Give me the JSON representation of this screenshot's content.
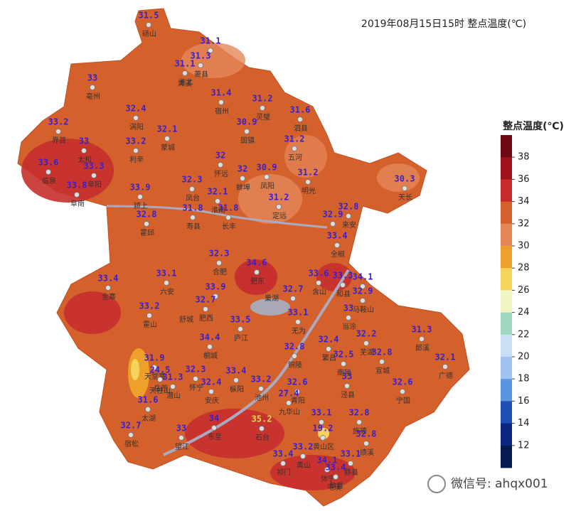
{
  "title": "2019年08月15日15时  整点温度(℃)",
  "legend": {
    "title": "整点温度(℃)",
    "ticks": [
      38,
      36,
      34,
      32,
      30,
      28,
      26,
      24,
      22,
      20,
      18,
      16,
      14,
      12
    ]
  },
  "stations": [
    {
      "value": 31.5,
      "name": "砀山"
    },
    {
      "value": 31.1
    },
    {
      "value": 31.3,
      "name": "萧县"
    },
    {
      "value": 31.1,
      "name": "淮北"
    },
    {
      "value": 33,
      "name": "亳州"
    },
    {
      "value": 31.4,
      "name": "宿州"
    },
    {
      "value": 31.2,
      "name": "灵璧"
    },
    {
      "value": 31.6,
      "name": "泗县"
    },
    {
      "value": 32.4,
      "name": "涡阳"
    },
    {
      "value": 32.1,
      "name": "蒙城"
    },
    {
      "value": 30.9,
      "name": "固镇"
    },
    {
      "value": 33.2,
      "name": "界首"
    },
    {
      "value": 33,
      "name": "太和"
    },
    {
      "value": 33.2,
      "name": "利辛"
    },
    {
      "value": 31.2,
      "name": "五河"
    },
    {
      "value": 32,
      "name": "怀远"
    },
    {
      "value": 30.9,
      "name": "凤阳"
    },
    {
      "value": 32,
      "name": "蚌埠"
    },
    {
      "value": 33.6,
      "name": "临泉"
    },
    {
      "value": 33.3,
      "name": "阜阳"
    },
    {
      "value": 33.8,
      "name": "阜南"
    },
    {
      "value": 33.9,
      "name": "颍上"
    },
    {
      "value": 32.3,
      "name": "凤台"
    },
    {
      "value": 32.1,
      "name": "淮南"
    },
    {
      "value": 31.2,
      "name": "明光"
    },
    {
      "value": 30.3,
      "name": "天长"
    },
    {
      "value": 31.2,
      "name": "定远"
    },
    {
      "value": 31.8,
      "name": "寿县"
    },
    {
      "value": 31.8,
      "name": "长丰"
    },
    {
      "value": 32.8,
      "name": "霍邱"
    },
    {
      "value": 32.8,
      "name": "来安"
    },
    {
      "value": 32.9
    },
    {
      "value": 33.4,
      "name": "全椒"
    },
    {
      "value": 32.3,
      "name": "合肥"
    },
    {
      "value": 34.6,
      "name": "肥东"
    },
    {
      "value": 33.1,
      "name": "六安"
    },
    {
      "value": 33.6,
      "name": "含山"
    },
    {
      "value": 33.3,
      "name": "和县"
    },
    {
      "value": 34.1
    },
    {
      "value": 32.7
    },
    {
      "value": 32.9,
      "name": "马鞍山"
    },
    {
      "value": 33.9
    },
    {
      "value": 33.4,
      "name": "金寨"
    },
    {
      "value": 32.7,
      "name": "肥西"
    },
    {
      "value": 33.2,
      "name": "霍山"
    },
    {
      "value": 33.1,
      "name": "无为"
    },
    {
      "value": 33,
      "name": "当涂"
    },
    {
      "value": 33.5,
      "name": "庐江"
    },
    {
      "value": 34.4,
      "name": "桐城"
    },
    {
      "value": 32.4,
      "name": "繁昌"
    },
    {
      "value": 32.2,
      "name": "芜湖"
    },
    {
      "value": 31.3,
      "name": "郎溪"
    },
    {
      "value": 32.8,
      "name": "铜陵"
    },
    {
      "value": 32.5,
      "name": "南陵"
    },
    {
      "value": 32.8,
      "name": "宣城"
    },
    {
      "value": 32.1,
      "name": "广德"
    },
    {
      "value": 31.9,
      "name": "天堂寨"
    },
    {
      "value": 24.5,
      "name": "岳西"
    },
    {
      "value": 32.3,
      "name": "怀宁"
    },
    {
      "value": 33.4,
      "name": "枞阳"
    },
    {
      "value": 31.3,
      "name": "潜山"
    },
    {
      "value": 32.4,
      "name": "安庆"
    },
    {
      "value": 33.2,
      "name": "池州"
    },
    {
      "value": 32.6,
      "name": "青阳"
    },
    {
      "value": 33,
      "name": "泾县"
    },
    {
      "value": 32.6,
      "name": "宁国"
    },
    {
      "value": 27.4,
      "name": "九华山"
    },
    {
      "value": 31.6,
      "name": "太湖"
    },
    {
      "value": 34,
      "name": "东至"
    },
    {
      "value": 35.2,
      "name": "石台"
    },
    {
      "value": 33.1
    },
    {
      "value": 32.8,
      "name": "旌德"
    },
    {
      "value": 32.7,
      "name": "宿松"
    },
    {
      "value": 33,
      "name": "望江"
    },
    {
      "value": 19.2,
      "name": "黄山区"
    },
    {
      "value": 32.8,
      "name": "绩溪"
    },
    {
      "value": 33.4,
      "name": "祁门"
    },
    {
      "value": 33.2,
      "name": "黄山"
    },
    {
      "value": 33.1,
      "name": "黟县"
    },
    {
      "value": 34.1,
      "name": "休宁"
    },
    {
      "value": 33.4,
      "name": "歙县"
    }
  ],
  "places": [
    "濉溪",
    "舒城",
    "天柱山",
    "屯溪",
    "巢湖"
  ],
  "watermark": "微信号: ahqx001"
}
